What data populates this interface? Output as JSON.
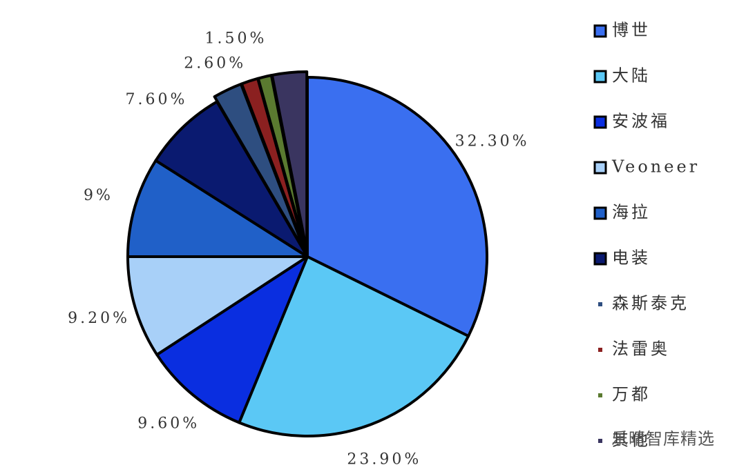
{
  "chart_data": {
    "type": "pie",
    "categories": [
      "博世",
      "大陆",
      "安波福",
      "Veoneer",
      "海拉",
      "电装",
      "森斯泰克",
      "法雷奥",
      "万都",
      "其他"
    ],
    "values": [
      32.3,
      23.9,
      9.6,
      9.2,
      9,
      7.6,
      2.6,
      1.5,
      1.2,
      3.1
    ],
    "value_labels": [
      "32.30%",
      "23.90%",
      "9.60%",
      "9.20%",
      "9%",
      "7.60%",
      "2.60%",
      "1.50%",
      null,
      null
    ],
    "colors": [
      "#3a6ff0",
      "#5bc8f5",
      "#0a2ee0",
      "#a8d0f8",
      "#2060c8",
      "#0a1a70",
      "#2e4e80",
      "#8b2020",
      "#5a7a30",
      "#3a3560"
    ],
    "watermark": "乐晴智库精选"
  }
}
